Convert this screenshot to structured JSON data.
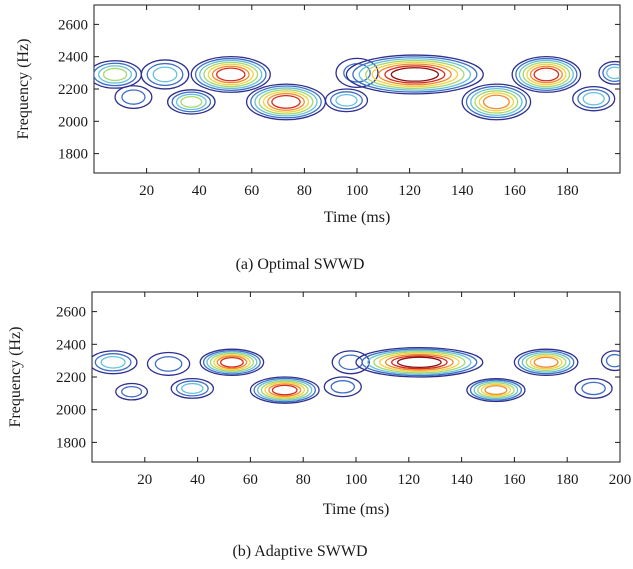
{
  "figure": {
    "panels": [
      {
        "caption": "(a)  Optimal SWWD",
        "xlabel": "Time (ms)",
        "ylabel": "Frequency (Hz)",
        "xticks": [
          "20",
          "40",
          "60",
          "80",
          "100",
          "120",
          "140",
          "160",
          "180"
        ],
        "yticks": [
          "1800",
          "2000",
          "2200",
          "2400",
          "2600"
        ]
      },
      {
        "caption": "(b)  Adaptive SWWD",
        "xlabel": "Time (ms)",
        "ylabel": "Frequency (Hz)",
        "xticks": [
          "20",
          "40",
          "60",
          "80",
          "100",
          "120",
          "140",
          "160",
          "180",
          "200"
        ],
        "yticks": [
          "1800",
          "2000",
          "2200",
          "2400",
          "2600"
        ]
      }
    ]
  },
  "chart_data": [
    {
      "type": "contour",
      "caption": "(a)  Optimal SWWD",
      "xlabel": "Time (ms)",
      "ylabel": "Frequency (Hz)",
      "xlim": [
        0,
        200
      ],
      "ylim": [
        1680,
        2720
      ],
      "xticks": [
        20,
        40,
        60,
        80,
        100,
        120,
        140,
        160,
        180
      ],
      "yticks": [
        1800,
        2000,
        2200,
        2400,
        2600
      ],
      "grid": false,
      "colormap_levels": [
        "#2e2f8f",
        "#3f6fc4",
        "#66c2d9",
        "#a7d86b",
        "#f4d23c",
        "#f08a2c",
        "#d62c1f",
        "#8b1010"
      ],
      "components": [
        {
          "t": 8,
          "f": 2290,
          "dt": 10,
          "df": 85,
          "peak": 0.45
        },
        {
          "t": 15,
          "f": 2150,
          "dt": 7,
          "df": 70,
          "peak": 0.3
        },
        {
          "t": 27,
          "f": 2290,
          "dt": 9,
          "df": 90,
          "peak": 0.4
        },
        {
          "t": 37,
          "f": 2120,
          "dt": 9,
          "df": 75,
          "peak": 0.45
        },
        {
          "t": 52,
          "f": 2290,
          "dt": 15,
          "df": 110,
          "peak": 0.9
        },
        {
          "t": 73,
          "f": 2120,
          "dt": 15,
          "df": 110,
          "peak": 0.9
        },
        {
          "t": 96,
          "f": 2130,
          "dt": 8,
          "df": 70,
          "peak": 0.35
        },
        {
          "t": 100,
          "f": 2300,
          "dt": 8,
          "df": 90,
          "peak": 0.3
        },
        {
          "t": 122,
          "f": 2290,
          "dt": 26,
          "df": 120,
          "peak": 1.0
        },
        {
          "t": 153,
          "f": 2120,
          "dt": 13,
          "df": 110,
          "peak": 0.8
        },
        {
          "t": 172,
          "f": 2290,
          "dt": 13,
          "df": 110,
          "peak": 0.85
        },
        {
          "t": 190,
          "f": 2140,
          "dt": 8,
          "df": 75,
          "peak": 0.35
        },
        {
          "t": 198,
          "f": 2300,
          "dt": 6,
          "df": 70,
          "peak": 0.35
        }
      ]
    },
    {
      "type": "contour",
      "caption": "(b)  Adaptive SWWD",
      "xlabel": "Time (ms)",
      "ylabel": "Frequency (Hz)",
      "xlim": [
        0,
        200
      ],
      "ylim": [
        1680,
        2720
      ],
      "xticks": [
        20,
        40,
        60,
        80,
        100,
        120,
        140,
        160,
        180,
        200
      ],
      "yticks": [
        1800,
        2000,
        2200,
        2400,
        2600
      ],
      "grid": false,
      "colormap_levels": [
        "#2e2f8f",
        "#3f6fc4",
        "#66c2d9",
        "#a7d86b",
        "#f4d23c",
        "#f08a2c",
        "#d62c1f",
        "#8b1010"
      ],
      "components": [
        {
          "t": 8,
          "f": 2290,
          "dt": 9,
          "df": 70,
          "peak": 0.4
        },
        {
          "t": 15,
          "f": 2110,
          "dt": 6,
          "df": 50,
          "peak": 0.2
        },
        {
          "t": 29,
          "f": 2280,
          "dt": 8,
          "df": 70,
          "peak": 0.3
        },
        {
          "t": 38,
          "f": 2130,
          "dt": 8,
          "df": 60,
          "peak": 0.35
        },
        {
          "t": 53,
          "f": 2290,
          "dt": 12,
          "df": 80,
          "peak": 0.85
        },
        {
          "t": 73,
          "f": 2120,
          "dt": 13,
          "df": 80,
          "peak": 0.85
        },
        {
          "t": 95,
          "f": 2140,
          "dt": 7,
          "df": 60,
          "peak": 0.3
        },
        {
          "t": 98,
          "f": 2290,
          "dt": 7,
          "df": 70,
          "peak": 0.25
        },
        {
          "t": 124,
          "f": 2290,
          "dt": 24,
          "df": 90,
          "peak": 1.0
        },
        {
          "t": 153,
          "f": 2120,
          "dt": 11,
          "df": 70,
          "peak": 0.75
        },
        {
          "t": 172,
          "f": 2290,
          "dt": 12,
          "df": 80,
          "peak": 0.8
        },
        {
          "t": 190,
          "f": 2130,
          "dt": 7,
          "df": 60,
          "peak": 0.3
        },
        {
          "t": 198,
          "f": 2300,
          "dt": 5,
          "df": 60,
          "peak": 0.3
        }
      ]
    }
  ]
}
